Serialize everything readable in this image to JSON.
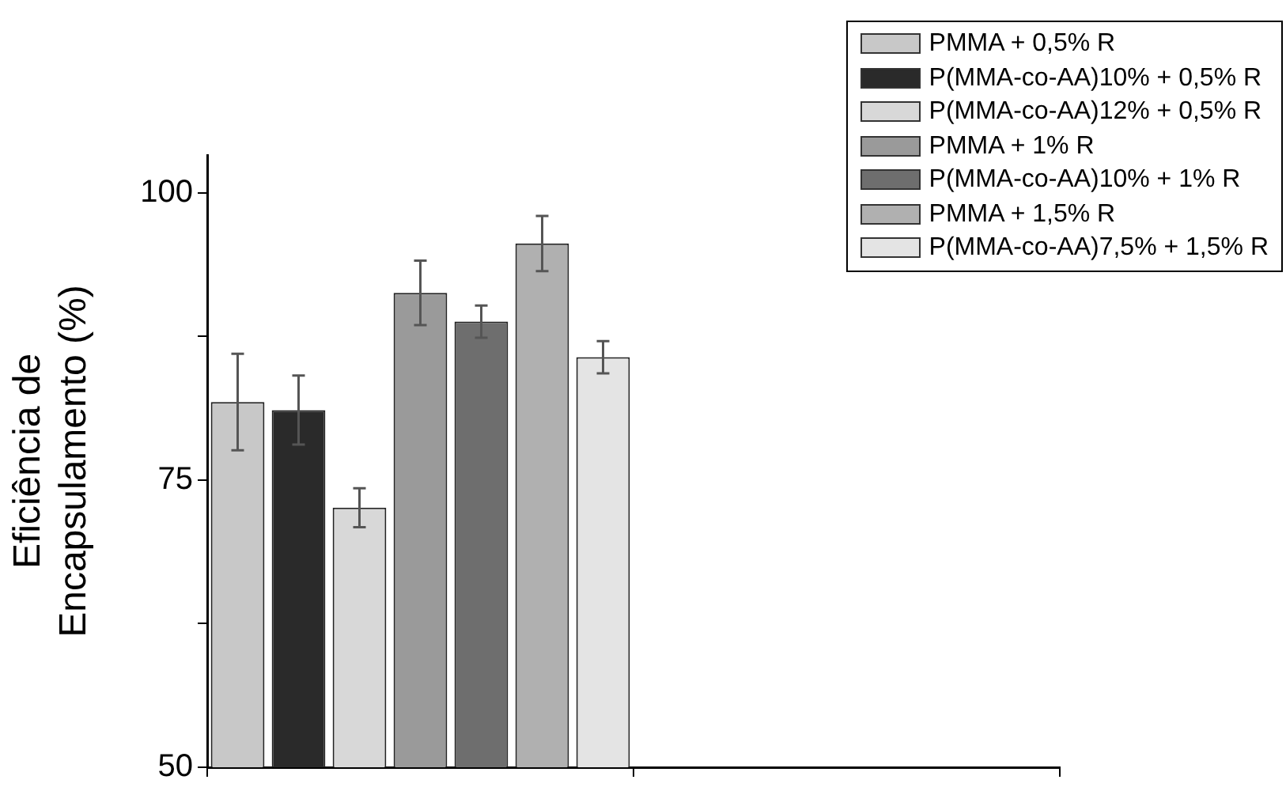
{
  "chart_data": {
    "type": "bar",
    "ylabel": "Eficiência de\nEncapsulamento (%)",
    "categories": [
      null,
      null
    ],
    "series": [
      {
        "name": "PMMA + 0,5% R",
        "color": "#c8c8c8",
        "values": [
          81.8,
          null
        ],
        "errors": [
          4.2,
          null
        ]
      },
      {
        "name": "P(MMA-co-AA)10% + 0,5% R",
        "color": "#2a2a2a",
        "values": [
          81.1,
          null
        ],
        "errors": [
          3.0,
          null
        ]
      },
      {
        "name": "P(MMA-co-AA)12% + 0,5% R",
        "color": "#d8d8d8",
        "values": [
          72.6,
          null
        ],
        "errors": [
          1.7,
          null
        ]
      },
      {
        "name": "PMMA + 1% R",
        "color": "#9a9a9a",
        "values": [
          91.3,
          null
        ],
        "errors": [
          2.8,
          null
        ]
      },
      {
        "name": "P(MMA-co-AA)10% + 1% R",
        "color": "#6e6e6e",
        "values": [
          88.8,
          null
        ],
        "errors": [
          1.4,
          null
        ]
      },
      {
        "name": "PMMA + 1,5% R",
        "color": "#b0b0b0",
        "values": [
          95.6,
          null
        ],
        "errors": [
          2.4,
          null
        ]
      },
      {
        "name": "P(MMA-co-AA)7,5% + 1,5% R",
        "color": "#e4e4e4",
        "values": [
          85.7,
          null
        ],
        "errors": [
          1.4,
          null
        ]
      }
    ],
    "ylim": [
      50,
      103.3
    ],
    "yticks": [
      50,
      {
        "value": 62.5,
        "label": null
      },
      75,
      {
        "value": 87.5,
        "label": null
      },
      100
    ],
    "tick_labels": "y",
    "grid": false,
    "legend": "top right"
  }
}
